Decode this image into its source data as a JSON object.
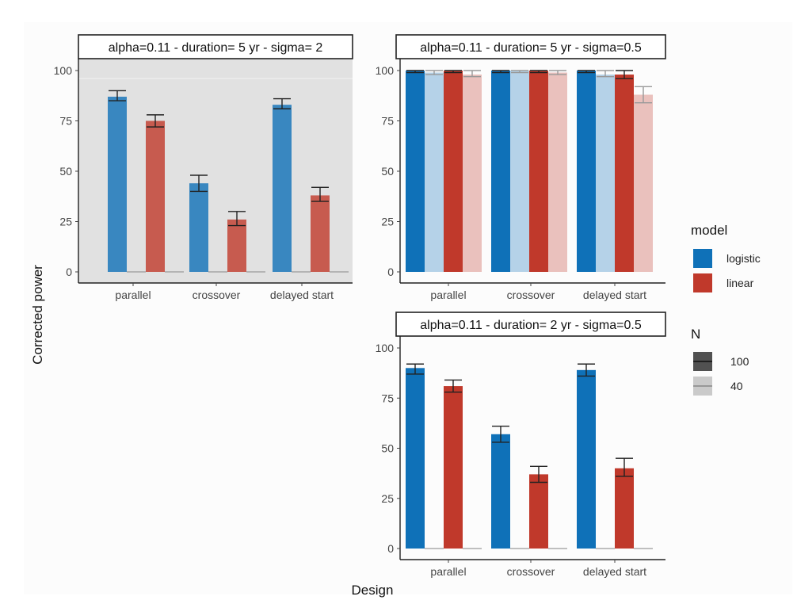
{
  "chart_data": [
    {
      "type": "bar",
      "title": "alpha=0.11 - duration=  5 yr - sigma= 2",
      "categories": [
        "parallel",
        "crossover",
        "delayed start"
      ],
      "xlabel": "Design",
      "ylabel": "Corrected power",
      "ylim": [
        0,
        100
      ],
      "yticks": [
        0,
        25,
        50,
        75,
        100
      ],
      "background": "grey",
      "series": [
        {
          "model": "logistic",
          "N": "100",
          "values": [
            87,
            44,
            83
          ],
          "err_low": [
            85,
            40,
            81
          ],
          "err_high": [
            90,
            48,
            86
          ]
        },
        {
          "model": "logistic",
          "N": "40",
          "values": [
            0,
            0,
            0
          ]
        },
        {
          "model": "linear",
          "N": "100",
          "values": [
            75,
            26,
            38
          ],
          "err_low": [
            72,
            23,
            35
          ],
          "err_high": [
            78,
            30,
            42
          ]
        },
        {
          "model": "linear",
          "N": "40",
          "values": [
            0,
            0,
            0
          ]
        }
      ]
    },
    {
      "type": "bar",
      "title": "alpha=0.11 - duration=  5 yr - sigma=0.5",
      "categories": [
        "parallel",
        "crossover",
        "delayed start"
      ],
      "xlabel": "Design",
      "ylabel": "Corrected power",
      "ylim": [
        0,
        100
      ],
      "yticks": [
        0,
        25,
        50,
        75,
        100
      ],
      "background": "white",
      "series": [
        {
          "model": "logistic",
          "N": "100",
          "values": [
            100,
            100,
            100
          ],
          "err_low": [
            99,
            99,
            99
          ],
          "err_high": [
            100,
            100,
            100
          ]
        },
        {
          "model": "logistic",
          "N": "40",
          "values": [
            99,
            100,
            98
          ],
          "err_low": [
            98,
            99,
            97
          ],
          "err_high": [
            100,
            100,
            100
          ]
        },
        {
          "model": "linear",
          "N": "100",
          "values": [
            100,
            100,
            98
          ],
          "err_low": [
            99,
            99,
            96
          ],
          "err_high": [
            100,
            100,
            100
          ]
        },
        {
          "model": "linear",
          "N": "40",
          "values": [
            98,
            99,
            88
          ],
          "err_low": [
            97,
            98,
            84
          ],
          "err_high": [
            100,
            100,
            92
          ]
        }
      ]
    },
    {
      "type": "bar",
      "title": "alpha=0.11 - duration= 2 yr - sigma=0.5",
      "categories": [
        "parallel",
        "crossover",
        "delayed start"
      ],
      "xlabel": "Design",
      "ylabel": "Corrected power",
      "ylim": [
        0,
        100
      ],
      "yticks": [
        0,
        25,
        50,
        75,
        100
      ],
      "background": "white",
      "series": [
        {
          "model": "logistic",
          "N": "100",
          "values": [
            90,
            57,
            89
          ],
          "err_low": [
            87,
            53,
            86
          ],
          "err_high": [
            92,
            61,
            92
          ]
        },
        {
          "model": "logistic",
          "N": "40",
          "values": [
            0,
            0,
            0
          ]
        },
        {
          "model": "linear",
          "N": "100",
          "values": [
            81,
            37,
            40
          ],
          "err_low": [
            78,
            33,
            36
          ],
          "err_high": [
            84,
            41,
            45
          ]
        },
        {
          "model": "linear",
          "N": "40",
          "values": [
            0,
            0,
            0
          ]
        }
      ]
    }
  ],
  "axis": {
    "xlabel": "Design",
    "ylabel": "Corrected power"
  },
  "legend": {
    "model": {
      "title": "model",
      "items": [
        {
          "label": "logistic",
          "color": "#0f71b8"
        },
        {
          "label": "linear",
          "color": "#c0392b"
        }
      ]
    },
    "N": {
      "title": "N",
      "items": [
        {
          "label": "100",
          "alpha": 1.0
        },
        {
          "label": "40",
          "alpha": 0.3
        }
      ]
    }
  },
  "colors": {
    "logistic": "#0f71b8",
    "linear": "#c0392b",
    "grey_panel": "#e1e1e1",
    "figure_bg": "#fcfcfc"
  }
}
